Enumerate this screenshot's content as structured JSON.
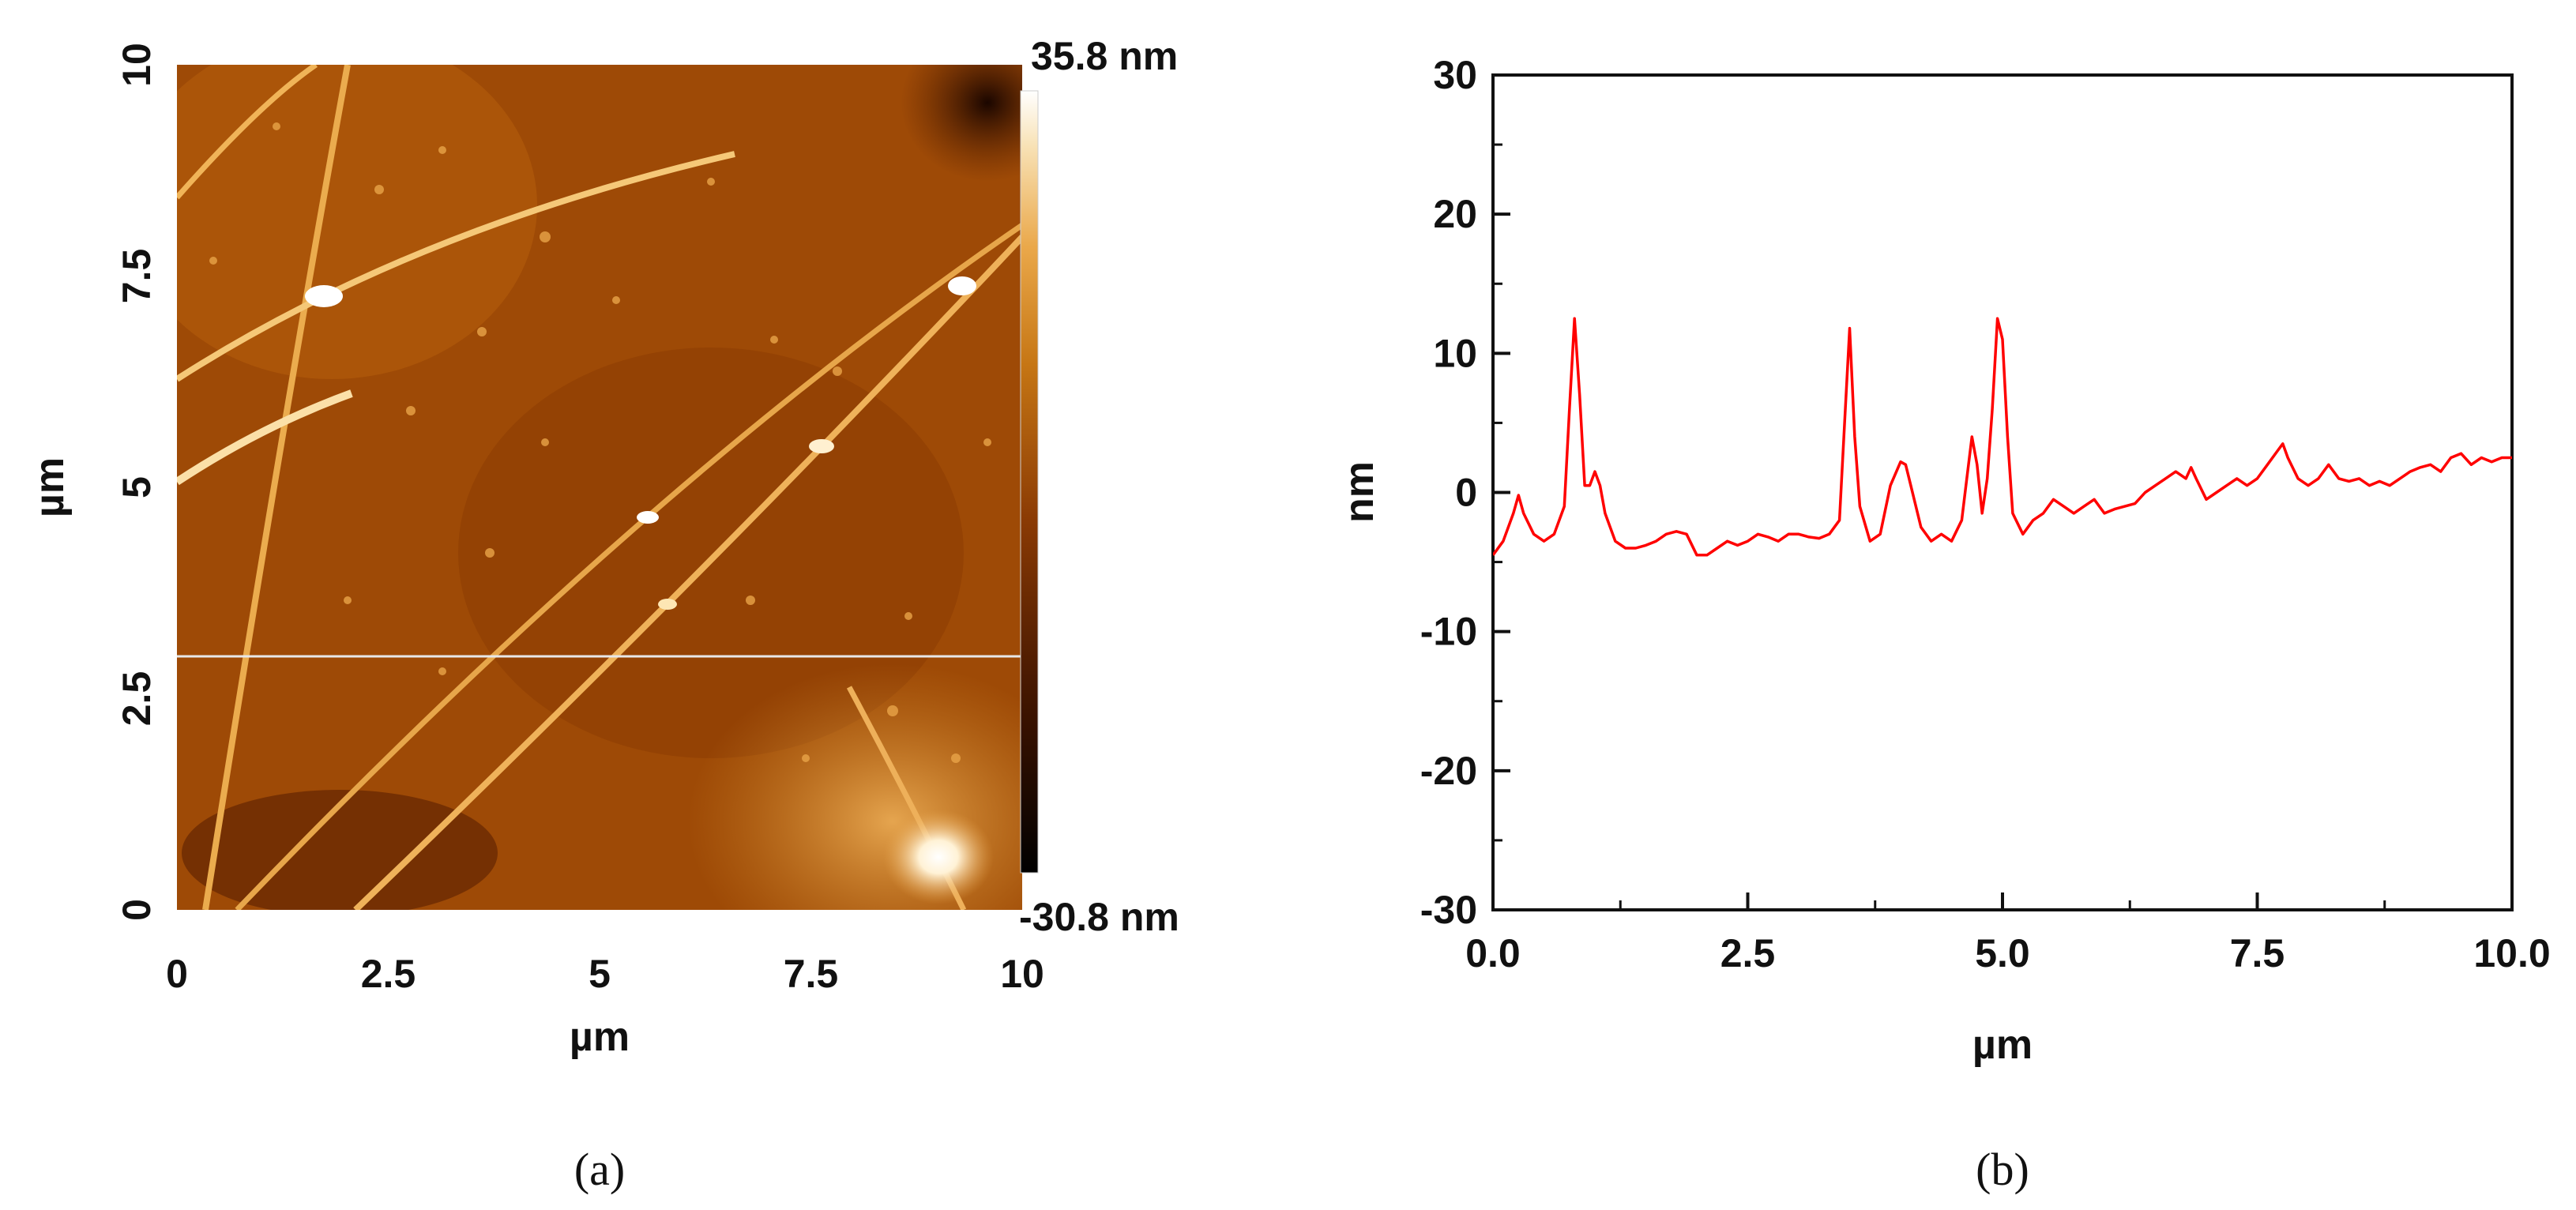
{
  "chart_data": [
    {
      "type": "heatmap",
      "panel": "(a)",
      "xlabel": "µm",
      "ylabel": "µm",
      "xlim": [
        0,
        10
      ],
      "ylim": [
        0,
        10
      ],
      "x_ticks": [
        "0",
        "2.5",
        "5",
        "7.5",
        "10"
      ],
      "y_ticks": [
        "0",
        "2.5",
        "5",
        "7.5",
        "10"
      ],
      "colorbar": {
        "max_label": "35.8 nm",
        "min_label": "-30.8 nm",
        "max": 35.8,
        "min": -30.8,
        "colors": [
          "#000000",
          "#3a1200",
          "#8a3a04",
          "#c67614",
          "#eaa84a",
          "#f8e2b6",
          "#ffffff"
        ]
      },
      "profile_line_y": 3.0
    },
    {
      "type": "line",
      "panel": "(b)",
      "xlabel": "µm",
      "ylabel": "nm",
      "xlim": [
        0,
        10
      ],
      "ylim": [
        -30,
        30
      ],
      "x_ticks": [
        "0.0",
        "2.5",
        "5.0",
        "7.5",
        "10.0"
      ],
      "y_ticks": [
        "-30",
        "-20",
        "-10",
        "0",
        "10",
        "20",
        "30"
      ],
      "series": [
        {
          "color": "#ff0000",
          "x": [
            0.0,
            0.1,
            0.2,
            0.25,
            0.3,
            0.4,
            0.5,
            0.6,
            0.7,
            0.75,
            0.8,
            0.85,
            0.9,
            0.95,
            1.0,
            1.05,
            1.1,
            1.2,
            1.3,
            1.4,
            1.5,
            1.6,
            1.7,
            1.8,
            1.9,
            2.0,
            2.1,
            2.2,
            2.3,
            2.4,
            2.5,
            2.6,
            2.7,
            2.8,
            2.9,
            3.0,
            3.1,
            3.2,
            3.3,
            3.4,
            3.45,
            3.5,
            3.55,
            3.6,
            3.7,
            3.8,
            3.9,
            4.0,
            4.05,
            4.1,
            4.2,
            4.3,
            4.4,
            4.5,
            4.6,
            4.65,
            4.7,
            4.75,
            4.8,
            4.85,
            4.9,
            4.95,
            5.0,
            5.05,
            5.1,
            5.2,
            5.3,
            5.4,
            5.5,
            5.6,
            5.7,
            5.8,
            5.9,
            6.0,
            6.1,
            6.2,
            6.3,
            6.4,
            6.5,
            6.6,
            6.7,
            6.8,
            6.85,
            6.9,
            7.0,
            7.1,
            7.2,
            7.3,
            7.4,
            7.5,
            7.6,
            7.7,
            7.75,
            7.8,
            7.9,
            8.0,
            8.1,
            8.2,
            8.3,
            8.4,
            8.5,
            8.6,
            8.7,
            8.8,
            8.9,
            9.0,
            9.1,
            9.2,
            9.3,
            9.4,
            9.5,
            9.6,
            9.7,
            9.8,
            9.9,
            10.0
          ],
          "y": [
            -4.5,
            -3.5,
            -1.5,
            -0.2,
            -1.5,
            -3.0,
            -3.5,
            -3.0,
            -1.0,
            6.0,
            12.5,
            7.0,
            0.5,
            0.5,
            1.5,
            0.5,
            -1.5,
            -3.5,
            -4.0,
            -4.0,
            -3.8,
            -3.5,
            -3.0,
            -2.8,
            -3.0,
            -4.5,
            -4.5,
            -4.0,
            -3.5,
            -3.8,
            -3.5,
            -3.0,
            -3.2,
            -3.5,
            -3.0,
            -3.0,
            -3.2,
            -3.3,
            -3.0,
            -2.0,
            5.0,
            11.8,
            4.0,
            -1.0,
            -3.5,
            -3.0,
            0.5,
            2.2,
            2.0,
            0.5,
            -2.5,
            -3.5,
            -3.0,
            -3.5,
            -2.0,
            1.0,
            4.0,
            2.0,
            -1.5,
            1.0,
            6.0,
            12.5,
            11.0,
            4.0,
            -1.5,
            -3.0,
            -2.0,
            -1.5,
            -0.5,
            -1.0,
            -1.5,
            -1.0,
            -0.5,
            -1.5,
            -1.2,
            -1.0,
            -0.8,
            0.0,
            0.5,
            1.0,
            1.5,
            1.0,
            1.8,
            1.0,
            -0.5,
            0.0,
            0.5,
            1.0,
            0.5,
            1.0,
            2.0,
            3.0,
            3.5,
            2.5,
            1.0,
            0.5,
            1.0,
            2.0,
            1.0,
            0.8,
            1.0,
            0.5,
            0.8,
            0.5,
            1.0,
            1.5,
            1.8,
            2.0,
            1.5,
            2.5,
            2.8,
            2.0,
            2.5,
            2.2,
            2.5,
            2.5
          ]
        }
      ]
    }
  ]
}
